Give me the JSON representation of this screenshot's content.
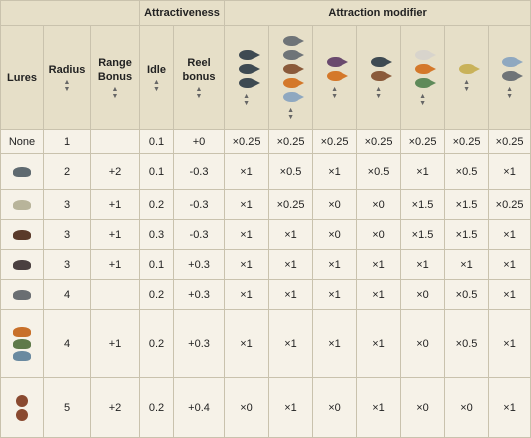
{
  "header": {
    "group_attractiveness": "Attractiveness",
    "group_modifier": "Attraction modifier",
    "col_lures": "Lures",
    "col_radius": "Radius",
    "col_range_bonus": "Range Bonus",
    "col_idle": "Idle",
    "col_reel_bonus": "Reel bonus",
    "sort_icon": "sort-arrows-icon"
  },
  "fish_columns": [
    {
      "icons": [
        "fish-dark-icon",
        "fish-dark-icon",
        "fish-dark-icon"
      ],
      "sortable": true
    },
    {
      "icons": [
        "fish-gray-icon",
        "fish-gray-icon",
        "fish-brown-icon",
        "fish-orange-icon",
        "fish-blue-icon"
      ],
      "sortable": true
    },
    {
      "icons": [
        "fish-purple-icon",
        "fish-orange-icon"
      ],
      "sortable": true
    },
    {
      "icons": [
        "fish-dark-icon",
        "fish-brown-icon"
      ],
      "sortable": true
    },
    {
      "icons": [
        "fish-white-icon",
        "fish-orange-icon",
        "fish-green-icon"
      ],
      "sortable": true
    },
    {
      "icons": [
        "fish-yellow-icon"
      ],
      "sortable": true
    },
    {
      "icons": [
        "fish-blue-icon",
        "fish-gray-icon"
      ],
      "sortable": true
    }
  ],
  "rows": [
    {
      "lure_label": "None",
      "lure_icons": [],
      "radius": "1",
      "range_bonus": "",
      "idle": "0.1",
      "reel": "+0",
      "mods": [
        "×0.25",
        "×0.25",
        "×0.25",
        "×0.25",
        "×0.25",
        "×0.25",
        "×0.25"
      ]
    },
    {
      "lure_label": "",
      "lure_icons": [
        "lure-gray-icon"
      ],
      "radius": "2",
      "range_bonus": "+2",
      "idle": "0.1",
      "reel": "-0.3",
      "mods": [
        "×1",
        "×0.5",
        "×1",
        "×0.5",
        "×1",
        "×0.5",
        "×1"
      ]
    },
    {
      "lure_label": "",
      "lure_icons": [
        "lure-bird-icon"
      ],
      "radius": "3",
      "range_bonus": "+1",
      "idle": "0.2",
      "reel": "-0.3",
      "mods": [
        "×1",
        "×0.25",
        "×0",
        "×0",
        "×1.5",
        "×1.5",
        "×0.25"
      ]
    },
    {
      "lure_label": "",
      "lure_icons": [
        "lure-brown-icon"
      ],
      "radius": "3",
      "range_bonus": "+1",
      "idle": "0.3",
      "reel": "-0.3",
      "mods": [
        "×1",
        "×1",
        "×0",
        "×0",
        "×1.5",
        "×1.5",
        "×1"
      ]
    },
    {
      "lure_label": "",
      "lure_icons": [
        "lure-hook-icon"
      ],
      "radius": "3",
      "range_bonus": "+1",
      "idle": "0.1",
      "reel": "+0.3",
      "mods": [
        "×1",
        "×1",
        "×1",
        "×1",
        "×1",
        "×1",
        "×1"
      ]
    },
    {
      "lure_label": "",
      "lure_icons": [
        "lure-worm-icon"
      ],
      "radius": "4",
      "range_bonus": "",
      "idle": "0.2",
      "reel": "+0.3",
      "mods": [
        "×1",
        "×1",
        "×1",
        "×1",
        "×0",
        "×0.5",
        "×1"
      ]
    },
    {
      "lure_label": "",
      "lure_icons": [
        "lure-orange-icon",
        "lure-green-icon",
        "lure-blue-icon"
      ],
      "radius": "4",
      "range_bonus": "+1",
      "idle": "0.2",
      "reel": "+0.3",
      "mods": [
        "×1",
        "×1",
        "×1",
        "×1",
        "×0",
        "×0.5",
        "×1"
      ]
    },
    {
      "lure_label": "",
      "lure_icons": [
        "lure-spinner-icon",
        "lure-spinner-icon"
      ],
      "radius": "5",
      "range_bonus": "+2",
      "idle": "0.2",
      "reel": "+0.4",
      "mods": [
        "×0",
        "×1",
        "×0",
        "×1",
        "×0",
        "×0",
        "×1"
      ]
    }
  ],
  "colors": {
    "fish-dark-icon": "#3e4a52",
    "fish-gray-icon": "#6f7478",
    "fish-brown-icon": "#8a5a3a",
    "fish-orange-icon": "#d4782a",
    "fish-blue-icon": "#8fa8c0",
    "fish-purple-icon": "#6a4a6e",
    "fish-white-icon": "#d8d4cc",
    "fish-green-icon": "#5f8a5a",
    "fish-yellow-icon": "#c9b25a",
    "lure-gray-icon": "#5f6a70",
    "lure-bird-icon": "#b8b49a",
    "lure-brown-icon": "#5a3a2a",
    "lure-hook-icon": "#4a4040",
    "lure-worm-icon": "#6a6e72",
    "lure-orange-icon": "#c8702a",
    "lure-green-icon": "#5f7a4a",
    "lure-blue-icon": "#6a8aa0",
    "lure-spinner-icon": "#8a4a30"
  }
}
